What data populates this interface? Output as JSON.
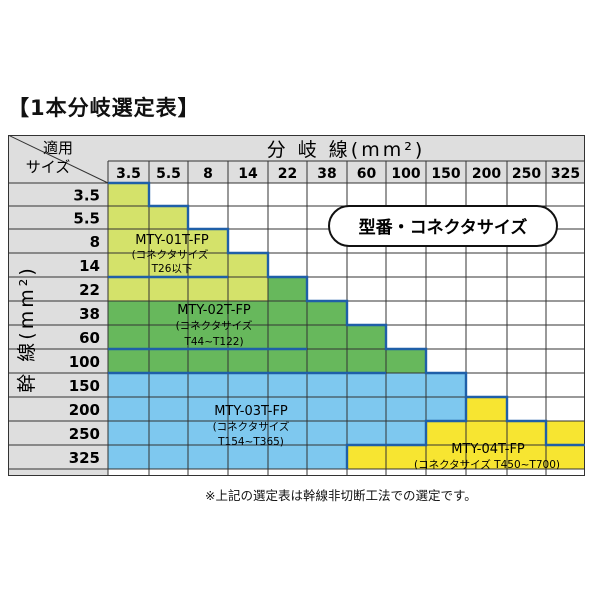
{
  "title": "【1本分岐選定表】",
  "header": {
    "corner_top": "適用",
    "corner_bottom": "サイズ",
    "branch_label": "分 岐 線(mm²)",
    "trunk_label": "幹 線(mm²)"
  },
  "branch_sizes": [
    "3.5",
    "5.5",
    "8",
    "14",
    "22",
    "38",
    "60",
    "100",
    "150",
    "200",
    "250",
    "325"
  ],
  "trunk_sizes": [
    "3.5",
    "5.5",
    "8",
    "14",
    "22",
    "38",
    "60",
    "100",
    "150",
    "200",
    "250",
    "325"
  ],
  "legend_bubble": "型番・コネクタサイズ",
  "regions": [
    {
      "model": "MTY-01T-FP",
      "note": "(コネクタサイズ",
      "range": "T26以下",
      "color": "#d4e26a"
    },
    {
      "model": "MTY-02T-FP",
      "note": "(コネクタサイズ",
      "range": "T44~T122)",
      "color": "#67b85c"
    },
    {
      "model": "MTY-03T-FP",
      "note": "(コネクタサイズ",
      "range": "T154~T365)",
      "color": "#7ec8ef"
    },
    {
      "model": "MTY-04T-FP",
      "note": "(コネクタサイズ T450~T700)",
      "range": "",
      "color": "#f7e531"
    }
  ],
  "footnote": "※上記の選定表は幹線非切断工法での選定です。",
  "colors": {
    "header_bg": "#dedede",
    "border": "#1f5fa8",
    "grid": "#333333"
  }
}
